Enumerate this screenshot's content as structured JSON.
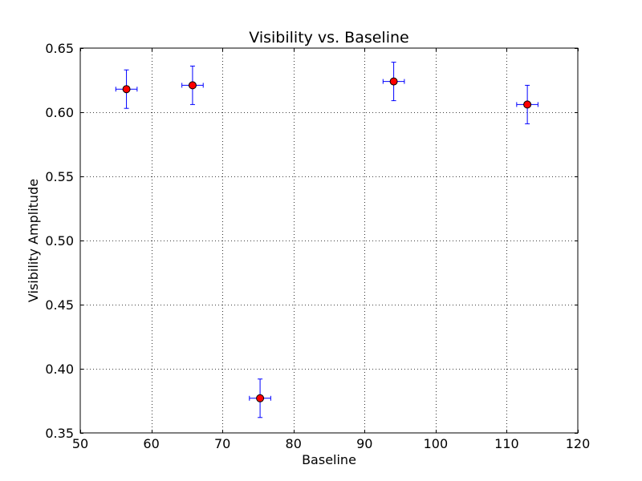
{
  "chart_data": {
    "type": "scatter",
    "title": "Visibility vs. Baseline",
    "xlabel": "Baseline",
    "ylabel": "Visibility Amplitude",
    "xlim": [
      50,
      120
    ],
    "ylim": [
      0.35,
      0.65
    ],
    "x_ticks": [
      50,
      60,
      70,
      80,
      90,
      100,
      110,
      120
    ],
    "y_ticks": [
      0.35,
      0.4,
      0.45,
      0.5,
      0.55,
      0.6,
      0.65
    ],
    "x_tick_labels": [
      "50",
      "60",
      "70",
      "80",
      "90",
      "100",
      "110",
      "120"
    ],
    "y_tick_labels": [
      "0.35",
      "0.40",
      "0.45",
      "0.50",
      "0.55",
      "0.60",
      "0.65"
    ],
    "grid": true,
    "colors": {
      "marker_fill": "#ff0000",
      "marker_edge": "#000000",
      "errorbar": "#0000ff",
      "grid": "#000000"
    },
    "points": [
      {
        "x": 56.5,
        "y": 0.618,
        "xerr": 1.5,
        "yerr": 0.015
      },
      {
        "x": 65.8,
        "y": 0.621,
        "xerr": 1.5,
        "yerr": 0.015
      },
      {
        "x": 75.3,
        "y": 0.377,
        "xerr": 1.5,
        "yerr": 0.015
      },
      {
        "x": 94.1,
        "y": 0.624,
        "xerr": 1.5,
        "yerr": 0.015
      },
      {
        "x": 112.9,
        "y": 0.606,
        "xerr": 1.5,
        "yerr": 0.015
      }
    ]
  }
}
